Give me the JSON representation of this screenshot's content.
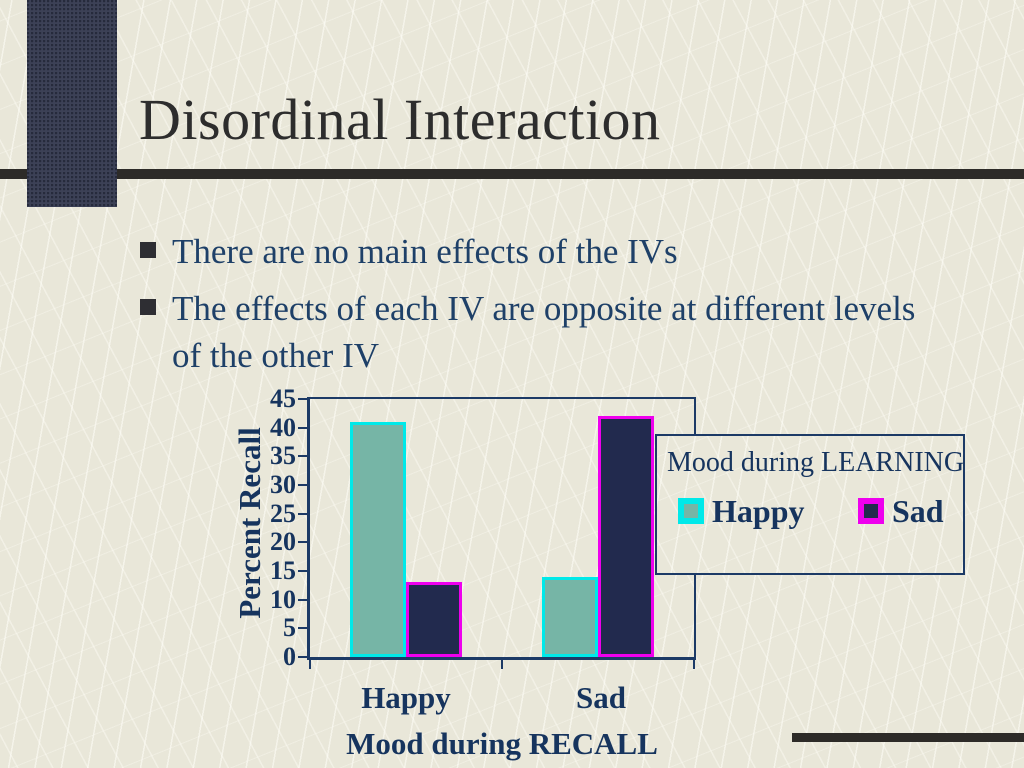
{
  "slide": {
    "title": "Disordinal Interaction",
    "bullets": [
      "There are no main effects of the IVs",
      "The effects of each IV are opposite at different levels of the other IV"
    ]
  },
  "chart_data": {
    "type": "bar",
    "categories": [
      "Happy",
      "Sad"
    ],
    "series": [
      {
        "name": "Happy",
        "values": [
          41,
          14
        ],
        "fill": "#76b5a6",
        "border": "#00e9e9"
      },
      {
        "name": "Sad",
        "values": [
          13,
          42
        ],
        "fill": "#222a4e",
        "border": "#ee00ee"
      }
    ],
    "xlabel": "Mood during RECALL",
    "ylabel": "Percent Recall",
    "ylim": [
      0,
      45
    ],
    "ytick_step": 5,
    "grid": false,
    "legend": {
      "title": "Mood during LEARNING",
      "position": "right-overlap"
    }
  },
  "colors": {
    "background": "#e9e7d9",
    "accent_bar": "#3c4156",
    "rule": "#2d2b28",
    "title_text": "#2d2d2d",
    "body_text": "#1e4068",
    "chart_text": "#16345e",
    "axis": "#1c3a66"
  }
}
